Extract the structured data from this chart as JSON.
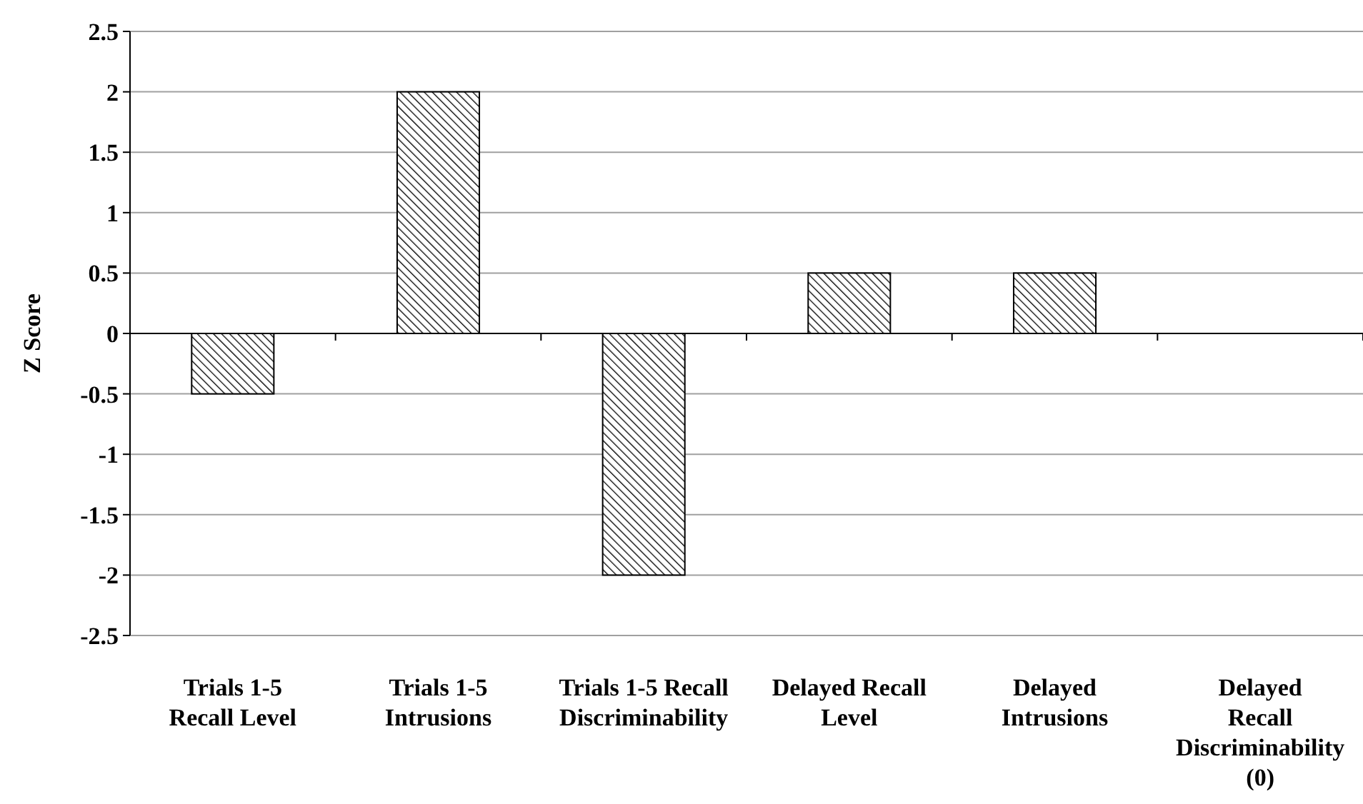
{
  "chart_data": {
    "type": "bar",
    "ylabel": "Z Score",
    "categories": [
      "Trials 1-5\nRecall Level",
      "Trials 1-5\nIntrusions",
      "Trials 1-5 Recall\nDiscriminability",
      "Delayed Recall\nLevel",
      "Delayed\nIntrusions",
      "Delayed\nRecall\nDiscriminability\n(0)"
    ],
    "values": [
      -0.5,
      2,
      -2,
      0.5,
      0.5,
      0
    ],
    "color": "#000000",
    "ylim": [
      -2.5,
      2.5
    ],
    "yticks": [
      2.5,
      2,
      1.5,
      1,
      0.5,
      0,
      -0.5,
      -1,
      -1.5,
      -2,
      -2.5
    ],
    "grid": "y"
  }
}
